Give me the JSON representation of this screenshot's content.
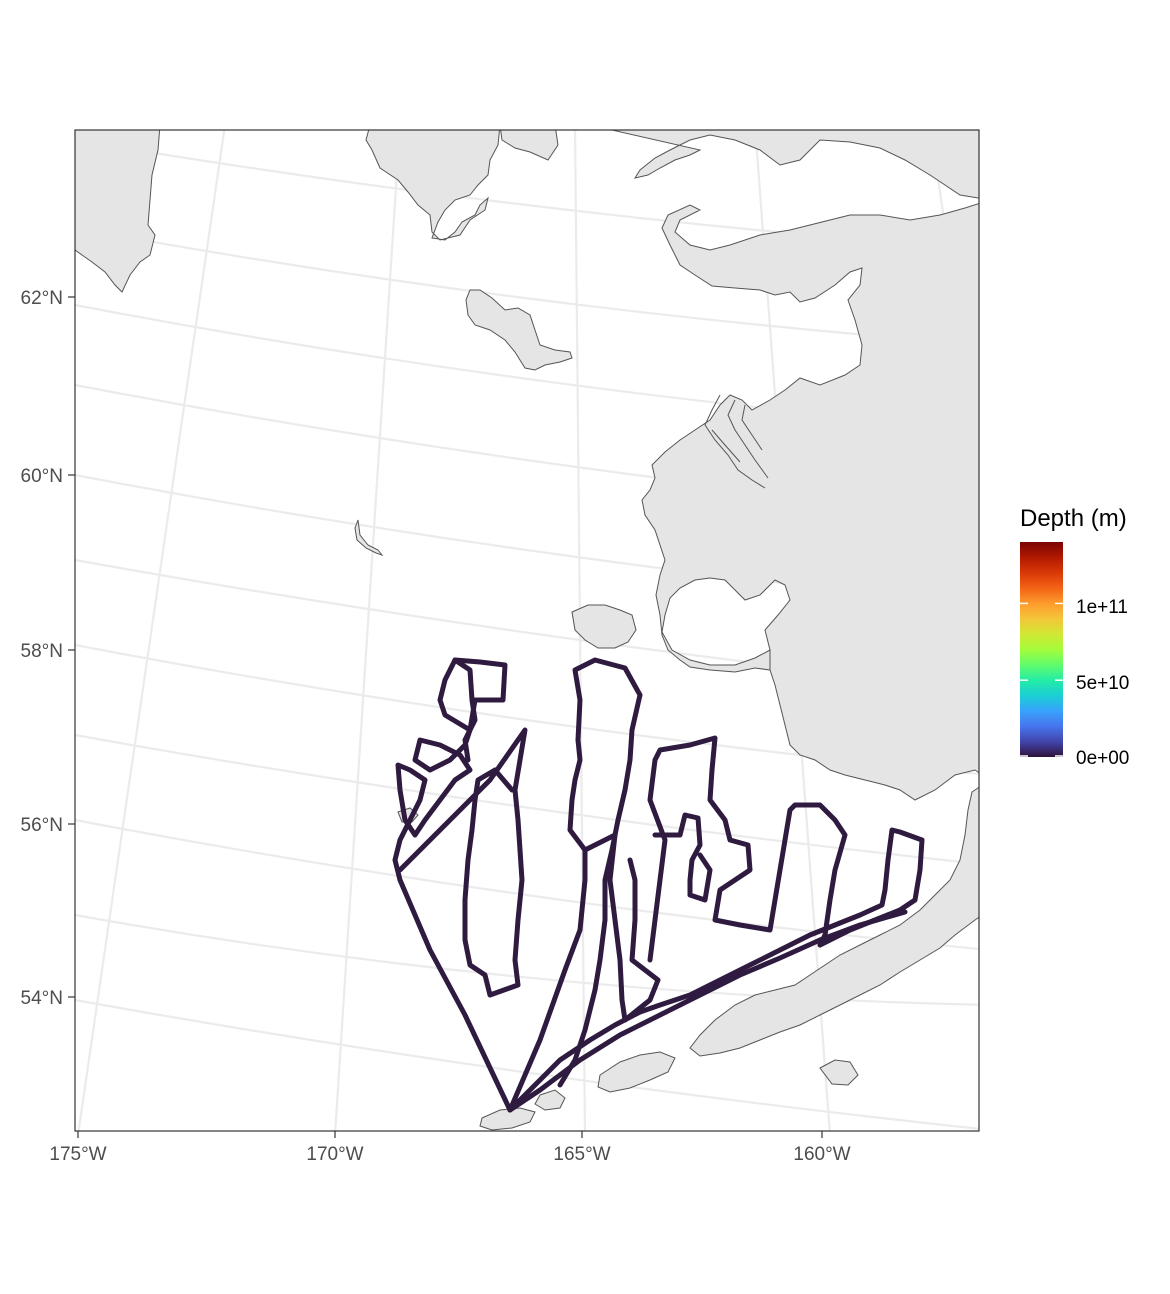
{
  "map": {
    "type": "track_map",
    "region": "Bering Sea",
    "y_ticks": [
      "62°N",
      "60°N",
      "58°N",
      "56°N",
      "54°N"
    ],
    "x_ticks": [
      "175°W",
      "170°W",
      "165°W",
      "160°W"
    ],
    "track_color": "#2f1a40",
    "land_color": "#e5e5e5",
    "ocean_color": "#ffffff",
    "graticule_color": "#ebebeb"
  },
  "legend": {
    "title": "Depth (m)",
    "labels": [
      "1e+11",
      "5e+10",
      "0e+00"
    ],
    "values": [
      100000000000,
      50000000000,
      0
    ],
    "range": [
      0,
      140000000000
    ],
    "colormap": "turbo",
    "colors": [
      "#30123b",
      "#4145ab",
      "#4675ed",
      "#39a2fc",
      "#1bcfd4",
      "#24eca6",
      "#61fc6c",
      "#a4fc3b",
      "#d1e834",
      "#f3c63a",
      "#fe9b2d",
      "#f36315",
      "#d93806",
      "#b11901",
      "#7a0402"
    ]
  }
}
